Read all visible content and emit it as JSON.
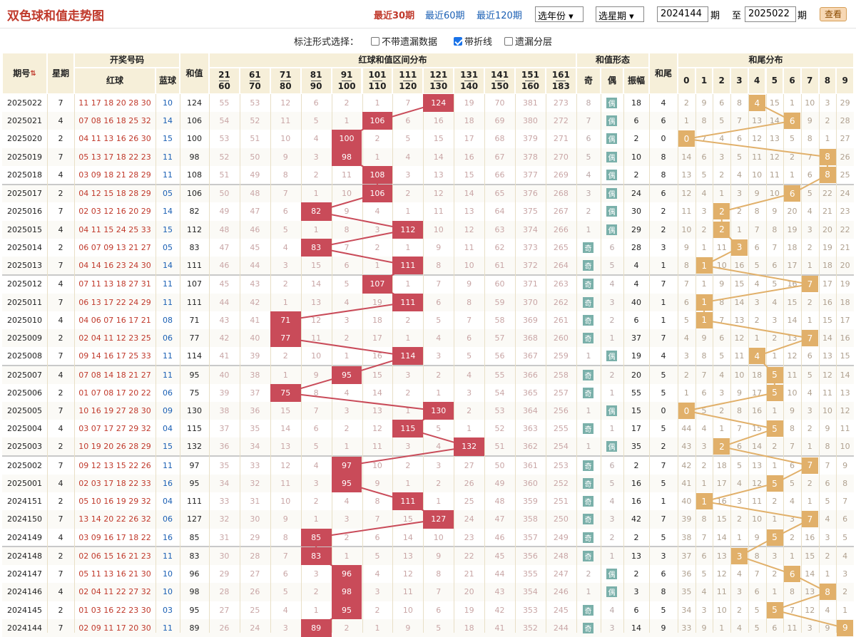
{
  "header": {
    "title": "双色球和值走势图",
    "links": [
      "最近30期",
      "最近60期",
      "最近120期"
    ],
    "active_link": 0,
    "select_year": "选年份",
    "select_week": "选星期",
    "from_period": "2024144",
    "to_period": "2025022",
    "label_period": "期",
    "label_to": "至",
    "label_period2": "期",
    "view_button": "查看"
  },
  "options": {
    "label": "标注形式选择：",
    "items": [
      {
        "label": "不带遗漏数据",
        "checked": false
      },
      {
        "label": "带折线",
        "checked": true
      },
      {
        "label": "遗漏分层",
        "checked": false
      }
    ]
  },
  "columns": {
    "period": "期号",
    "weekday": "星期",
    "draw": "开奖号码",
    "red": "红球",
    "blue": "蓝球",
    "sum": "和值",
    "range_group": "红球和值区间分布",
    "ranges": [
      [
        "21",
        "60"
      ],
      [
        "61",
        "70"
      ],
      [
        "71",
        "80"
      ],
      [
        "81",
        "90"
      ],
      [
        "91",
        "100"
      ],
      [
        "101",
        "110"
      ],
      [
        "111",
        "120"
      ],
      [
        "121",
        "130"
      ],
      [
        "131",
        "140"
      ],
      [
        "141",
        "150"
      ],
      [
        "151",
        "160"
      ],
      [
        "161",
        "183"
      ]
    ],
    "shape_group": "和值形态",
    "shape_odd": "奇",
    "shape_even": "偶",
    "shape_amp": "振幅",
    "tail": "和尾",
    "tail_group": "和尾分布",
    "tail_digits": [
      "0",
      "1",
      "2",
      "3",
      "4",
      "5",
      "6",
      "7",
      "8",
      "9"
    ]
  },
  "rows": [
    {
      "p": "2025022",
      "w": "7",
      "r": "11 17 18 20 28 30",
      "b": "10",
      "s": "124",
      "z": 7,
      "rm": [
        "55",
        "53",
        "12",
        "6",
        "2",
        "1",
        "7",
        "",
        "19",
        "70",
        "381",
        "273"
      ],
      "o": "8",
      "e": "偶",
      "amp": "18",
      "t": "4",
      "tm": [
        "2",
        "9",
        "6",
        "8",
        "",
        "15",
        "1",
        "10",
        "3",
        "29"
      ]
    },
    {
      "p": "2025021",
      "w": "4",
      "r": "07 08 16 18 25 32",
      "b": "14",
      "s": "106",
      "z": 5,
      "rm": [
        "54",
        "52",
        "11",
        "5",
        "1",
        "",
        "6",
        "16",
        "18",
        "69",
        "380",
        "272"
      ],
      "o": "7",
      "e": "偶",
      "amp": "6",
      "t": "6",
      "tm": [
        "1",
        "8",
        "5",
        "7",
        "13",
        "14",
        "",
        "9",
        "2",
        "28"
      ]
    },
    {
      "p": "2025020",
      "w": "2",
      "r": "04 11 13 16 26 30",
      "b": "15",
      "s": "100",
      "z": 4,
      "rm": [
        "53",
        "51",
        "10",
        "4",
        "",
        "2",
        "5",
        "15",
        "17",
        "68",
        "379",
        "271"
      ],
      "o": "6",
      "e": "偶",
      "amp": "2",
      "t": "0",
      "tm": [
        "",
        "7",
        "4",
        "6",
        "12",
        "13",
        "5",
        "8",
        "1",
        "27"
      ]
    },
    {
      "p": "2025019",
      "w": "7",
      "r": "05 13 17 18 22 23",
      "b": "11",
      "s": "98",
      "z": 4,
      "rm": [
        "52",
        "50",
        "9",
        "3",
        "",
        "1",
        "4",
        "14",
        "16",
        "67",
        "378",
        "270"
      ],
      "o": "5",
      "e": "偶",
      "amp": "10",
      "t": "8",
      "tm": [
        "14",
        "6",
        "3",
        "5",
        "11",
        "12",
        "2",
        "7",
        "",
        "26"
      ]
    },
    {
      "p": "2025018",
      "w": "4",
      "r": "03 09 18 21 28 29",
      "b": "11",
      "s": "108",
      "z": 5,
      "rm": [
        "51",
        "49",
        "8",
        "2",
        "11",
        "",
        "3",
        "13",
        "15",
        "66",
        "377",
        "269"
      ],
      "o": "4",
      "e": "偶",
      "amp": "2",
      "t": "8",
      "tm": [
        "13",
        "5",
        "2",
        "4",
        "10",
        "11",
        "1",
        "6",
        "",
        "25"
      ]
    },
    {
      "p": "2025017",
      "w": "2",
      "r": "04 12 15 18 28 29",
      "b": "05",
      "s": "106",
      "z": 5,
      "rm": [
        "50",
        "48",
        "7",
        "1",
        "10",
        "",
        "2",
        "12",
        "14",
        "65",
        "376",
        "268"
      ],
      "o": "3",
      "e": "偶",
      "amp": "24",
      "t": "6",
      "tm": [
        "12",
        "4",
        "1",
        "3",
        "9",
        "10",
        "",
        "5",
        "22",
        "24"
      ]
    },
    {
      "p": "2025016",
      "w": "7",
      "r": "02 03 12 16 20 29",
      "b": "14",
      "s": "82",
      "z": 3,
      "rm": [
        "49",
        "47",
        "6",
        "",
        "9",
        "4",
        "1",
        "11",
        "13",
        "64",
        "375",
        "267"
      ],
      "o": "2",
      "e": "偶",
      "amp": "30",
      "t": "2",
      "tm": [
        "11",
        "3",
        "",
        "2",
        "8",
        "9",
        "20",
        "4",
        "21",
        "23"
      ]
    },
    {
      "p": "2025015",
      "w": "4",
      "r": "04 11 15 24 25 33",
      "b": "15",
      "s": "112",
      "z": 6,
      "rm": [
        "48",
        "46",
        "5",
        "1",
        "8",
        "3",
        "",
        "10",
        "12",
        "63",
        "374",
        "266"
      ],
      "o": "1",
      "e": "偶",
      "amp": "29",
      "t": "2",
      "tm": [
        "10",
        "2",
        "",
        "1",
        "7",
        "8",
        "19",
        "3",
        "20",
        "22"
      ]
    },
    {
      "p": "2025014",
      "w": "2",
      "r": "06 07 09 13 21 27",
      "b": "05",
      "s": "83",
      "z": 3,
      "rm": [
        "47",
        "45",
        "4",
        "",
        "7",
        "2",
        "1",
        "9",
        "11",
        "62",
        "373",
        "265"
      ],
      "o": "奇",
      "e": "6",
      "amp": "28",
      "t": "3",
      "tm": [
        "9",
        "1",
        "11",
        "",
        "6",
        "7",
        "18",
        "2",
        "19",
        "21"
      ]
    },
    {
      "p": "2025013",
      "w": "7",
      "r": "04 14 16 23 24 30",
      "b": "14",
      "s": "111",
      "z": 6,
      "rm": [
        "46",
        "44",
        "3",
        "15",
        "6",
        "1",
        "",
        "8",
        "10",
        "61",
        "372",
        "264"
      ],
      "o": "奇",
      "e": "5",
      "amp": "4",
      "t": "1",
      "tm": [
        "8",
        "",
        "10",
        "16",
        "5",
        "6",
        "17",
        "1",
        "18",
        "20"
      ]
    },
    {
      "p": "2025012",
      "w": "4",
      "r": "07 11 13 18 27 31",
      "b": "11",
      "s": "107",
      "z": 5,
      "rm": [
        "45",
        "43",
        "2",
        "14",
        "5",
        "",
        "1",
        "7",
        "9",
        "60",
        "371",
        "263"
      ],
      "o": "奇",
      "e": "4",
      "amp": "4",
      "t": "7",
      "tm": [
        "7",
        "1",
        "9",
        "15",
        "4",
        "5",
        "16",
        "",
        "17",
        "19"
      ]
    },
    {
      "p": "2025011",
      "w": "7",
      "r": "06 13 17 22 24 29",
      "b": "11",
      "s": "111",
      "z": 6,
      "rm": [
        "44",
        "42",
        "1",
        "13",
        "4",
        "19",
        "",
        "6",
        "8",
        "59",
        "370",
        "262"
      ],
      "o": "奇",
      "e": "3",
      "amp": "40",
      "t": "1",
      "tm": [
        "6",
        "",
        "8",
        "14",
        "3",
        "4",
        "15",
        "2",
        "16",
        "18"
      ]
    },
    {
      "p": "2025010",
      "w": "4",
      "r": "04 06 07 16 17 21",
      "b": "08",
      "s": "71",
      "z": 2,
      "rm": [
        "43",
        "41",
        "",
        "12",
        "3",
        "18",
        "2",
        "5",
        "7",
        "58",
        "369",
        "261"
      ],
      "o": "奇",
      "e": "2",
      "amp": "6",
      "t": "1",
      "tm": [
        "5",
        "",
        "7",
        "13",
        "2",
        "3",
        "14",
        "1",
        "15",
        "17"
      ]
    },
    {
      "p": "2025009",
      "w": "2",
      "r": "02 04 11 12 23 25",
      "b": "06",
      "s": "77",
      "z": 2,
      "rm": [
        "42",
        "40",
        "",
        "11",
        "2",
        "17",
        "1",
        "4",
        "6",
        "57",
        "368",
        "260"
      ],
      "o": "奇",
      "e": "1",
      "amp": "37",
      "t": "7",
      "tm": [
        "4",
        "9",
        "6",
        "12",
        "1",
        "2",
        "13",
        "",
        "14",
        "16"
      ]
    },
    {
      "p": "2025008",
      "w": "7",
      "r": "09 14 16 17 25 33",
      "b": "11",
      "s": "114",
      "z": 6,
      "rm": [
        "41",
        "39",
        "2",
        "10",
        "1",
        "16",
        "",
        "3",
        "5",
        "56",
        "367",
        "259"
      ],
      "o": "1",
      "e": "偶",
      "amp": "19",
      "t": "4",
      "tm": [
        "3",
        "8",
        "5",
        "11",
        "",
        "1",
        "12",
        "6",
        "13",
        "15"
      ]
    },
    {
      "p": "2025007",
      "w": "4",
      "r": "07 08 14 18 21 27",
      "b": "11",
      "s": "95",
      "z": 4,
      "rm": [
        "40",
        "38",
        "1",
        "9",
        "",
        "15",
        "3",
        "2",
        "4",
        "55",
        "366",
        "258"
      ],
      "o": "奇",
      "e": "2",
      "amp": "20",
      "t": "5",
      "tm": [
        "2",
        "7",
        "4",
        "10",
        "18",
        "",
        "11",
        "5",
        "12",
        "14"
      ]
    },
    {
      "p": "2025006",
      "w": "2",
      "r": "01 07 08 17 20 22",
      "b": "06",
      "s": "75",
      "z": 2,
      "rm": [
        "39",
        "37",
        "",
        "8",
        "4",
        "14",
        "2",
        "1",
        "3",
        "54",
        "365",
        "257"
      ],
      "o": "奇",
      "e": "1",
      "amp": "55",
      "t": "5",
      "tm": [
        "1",
        "6",
        "3",
        "9",
        "17",
        "",
        "10",
        "4",
        "11",
        "13"
      ]
    },
    {
      "p": "2025005",
      "w": "7",
      "r": "10 16 19 27 28 30",
      "b": "09",
      "s": "130",
      "z": 7,
      "rm": [
        "38",
        "36",
        "15",
        "7",
        "3",
        "13",
        "1",
        "",
        "2",
        "53",
        "364",
        "256"
      ],
      "o": "1",
      "e": "偶",
      "amp": "15",
      "t": "0",
      "tm": [
        "",
        "5",
        "2",
        "8",
        "16",
        "1",
        "9",
        "3",
        "10",
        "12"
      ]
    },
    {
      "p": "2025004",
      "w": "4",
      "r": "03 07 17 27 29 32",
      "b": "04",
      "s": "115",
      "z": 6,
      "rm": [
        "37",
        "35",
        "14",
        "6",
        "2",
        "12",
        "",
        "5",
        "1",
        "52",
        "363",
        "255"
      ],
      "o": "奇",
      "e": "1",
      "amp": "17",
      "t": "5",
      "tm": [
        "44",
        "4",
        "1",
        "7",
        "15",
        "",
        "8",
        "2",
        "9",
        "11"
      ]
    },
    {
      "p": "2025003",
      "w": "2",
      "r": "10 19 20 26 28 29",
      "b": "15",
      "s": "132",
      "z": 8,
      "rm": [
        "36",
        "34",
        "13",
        "5",
        "1",
        "11",
        "3",
        "4",
        "",
        "51",
        "362",
        "254"
      ],
      "o": "1",
      "e": "偶",
      "amp": "35",
      "t": "2",
      "tm": [
        "43",
        "3",
        "",
        "6",
        "14",
        "2",
        "7",
        "1",
        "8",
        "10"
      ]
    },
    {
      "p": "2025002",
      "w": "7",
      "r": "09 12 13 15 22 26",
      "b": "11",
      "s": "97",
      "z": 4,
      "rm": [
        "35",
        "33",
        "12",
        "4",
        "",
        "10",
        "2",
        "3",
        "27",
        "50",
        "361",
        "253"
      ],
      "o": "奇",
      "e": "6",
      "amp": "2",
      "t": "7",
      "tm": [
        "42",
        "2",
        "18",
        "5",
        "13",
        "1",
        "6",
        "",
        "7",
        "9"
      ]
    },
    {
      "p": "2025001",
      "w": "4",
      "r": "02 03 17 18 22 33",
      "b": "16",
      "s": "95",
      "z": 4,
      "rm": [
        "34",
        "32",
        "11",
        "3",
        "",
        "9",
        "1",
        "2",
        "26",
        "49",
        "360",
        "252"
      ],
      "o": "奇",
      "e": "5",
      "amp": "16",
      "t": "5",
      "tm": [
        "41",
        "1",
        "17",
        "4",
        "12",
        "",
        "5",
        "2",
        "6",
        "8"
      ]
    },
    {
      "p": "2024151",
      "w": "2",
      "r": "05 10 16 19 29 32",
      "b": "04",
      "s": "111",
      "z": 6,
      "rm": [
        "33",
        "31",
        "10",
        "2",
        "4",
        "8",
        "",
        "1",
        "25",
        "48",
        "359",
        "251"
      ],
      "o": "奇",
      "e": "4",
      "amp": "16",
      "t": "1",
      "tm": [
        "40",
        "",
        "16",
        "3",
        "11",
        "2",
        "4",
        "1",
        "5",
        "7"
      ]
    },
    {
      "p": "2024150",
      "w": "7",
      "r": "13 14 20 22 26 32",
      "b": "06",
      "s": "127",
      "z": 7,
      "rm": [
        "32",
        "30",
        "9",
        "1",
        "3",
        "7",
        "15",
        "",
        "24",
        "47",
        "358",
        "250"
      ],
      "o": "奇",
      "e": "3",
      "amp": "42",
      "t": "7",
      "tm": [
        "39",
        "8",
        "15",
        "2",
        "10",
        "1",
        "3",
        "",
        "4",
        "6"
      ]
    },
    {
      "p": "2024149",
      "w": "4",
      "r": "03 09 16 17 18 22",
      "b": "16",
      "s": "85",
      "z": 3,
      "rm": [
        "31",
        "29",
        "8",
        "",
        "2",
        "6",
        "14",
        "10",
        "23",
        "46",
        "357",
        "249"
      ],
      "o": "奇",
      "e": "2",
      "amp": "2",
      "t": "5",
      "tm": [
        "38",
        "7",
        "14",
        "1",
        "9",
        "",
        "2",
        "16",
        "3",
        "5"
      ]
    },
    {
      "p": "2024148",
      "w": "2",
      "r": "02 06 15 16 21 23",
      "b": "11",
      "s": "83",
      "z": 3,
      "rm": [
        "30",
        "28",
        "7",
        "",
        "1",
        "5",
        "13",
        "9",
        "22",
        "45",
        "356",
        "248"
      ],
      "o": "奇",
      "e": "1",
      "amp": "13",
      "t": "3",
      "tm": [
        "37",
        "6",
        "13",
        "",
        "8",
        "3",
        "1",
        "15",
        "2",
        "4"
      ]
    },
    {
      "p": "2024147",
      "w": "7",
      "r": "05 11 13 16 21 30",
      "b": "10",
      "s": "96",
      "z": 4,
      "rm": [
        "29",
        "27",
        "6",
        "3",
        "",
        "4",
        "12",
        "8",
        "21",
        "44",
        "355",
        "247"
      ],
      "o": "2",
      "e": "偶",
      "amp": "2",
      "t": "6",
      "tm": [
        "36",
        "5",
        "12",
        "4",
        "7",
        "2",
        "",
        "14",
        "1",
        "3"
      ]
    },
    {
      "p": "2024146",
      "w": "4",
      "r": "02 04 11 22 27 32",
      "b": "10",
      "s": "98",
      "z": 4,
      "rm": [
        "28",
        "26",
        "5",
        "2",
        "",
        "3",
        "11",
        "7",
        "20",
        "43",
        "354",
        "246"
      ],
      "o": "1",
      "e": "偶",
      "amp": "3",
      "t": "8",
      "tm": [
        "35",
        "4",
        "11",
        "3",
        "6",
        "1",
        "8",
        "13",
        "",
        "2"
      ]
    },
    {
      "p": "2024145",
      "w": "2",
      "r": "01 03 16 22 23 30",
      "b": "03",
      "s": "95",
      "z": 4,
      "rm": [
        "27",
        "25",
        "4",
        "1",
        "",
        "2",
        "10",
        "6",
        "19",
        "42",
        "353",
        "245"
      ],
      "o": "奇",
      "e": "4",
      "amp": "6",
      "t": "5",
      "tm": [
        "34",
        "3",
        "10",
        "2",
        "5",
        "",
        "7",
        "12",
        "4",
        "1"
      ]
    },
    {
      "p": "2024144",
      "w": "7",
      "r": "02 09 11 17 20 30",
      "b": "11",
      "s": "89",
      "z": 3,
      "rm": [
        "26",
        "24",
        "3",
        "",
        "2",
        "1",
        "9",
        "5",
        "18",
        "41",
        "352",
        "244"
      ],
      "o": "奇",
      "e": "3",
      "amp": "14",
      "t": "9",
      "tm": [
        "33",
        "9",
        "1",
        "4",
        "5",
        "6",
        "11",
        "3",
        "9",
        ""
      ]
    }
  ]
}
